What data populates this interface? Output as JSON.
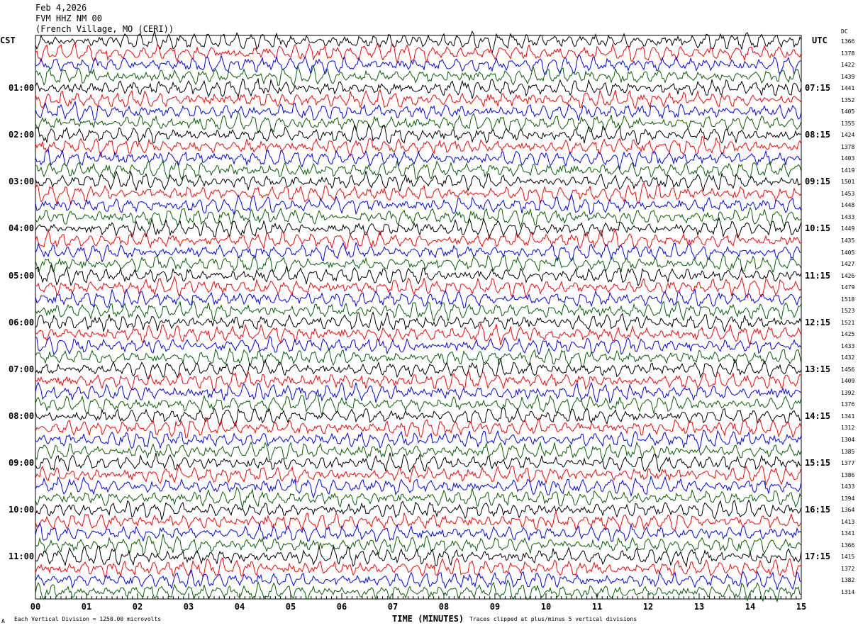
{
  "header": {
    "date": "Feb 4,2026",
    "station": "FVM HHZ NM 00",
    "location": "(French Village, MO (CERI))"
  },
  "left_zone": "CST",
  "right_zone": "UTC",
  "dc_label": "DC",
  "footer": {
    "scale": "Each Vertical Division = 1250.00 microvolts",
    "xlabel": "TIME (MINUTES)",
    "clip_note": "Traces clipped at plus/minus 5 vertical divisions",
    "corner": "A"
  },
  "chart_data": {
    "type": "line",
    "xlabel": "TIME (MINUTES)",
    "xlim": [
      0,
      15
    ],
    "x_ticks": [
      "00",
      "01",
      "02",
      "03",
      "04",
      "05",
      "06",
      "07",
      "08",
      "09",
      "10",
      "11",
      "12",
      "13",
      "14",
      "15"
    ],
    "left_hour_labels": [
      "01:00",
      "02:00",
      "03:00",
      "04:00",
      "05:00",
      "06:00",
      "07:00",
      "08:00",
      "09:00",
      "10:00",
      "11:00"
    ],
    "right_hour_labels": [
      "07:15",
      "08:15",
      "09:15",
      "10:15",
      "11:15",
      "12:15",
      "13:15",
      "14:15",
      "15:15",
      "16:15",
      "17:15"
    ],
    "trace_colors": [
      "#000000",
      "#ff0000",
      "#0000ff",
      "#006400"
    ],
    "dc_offsets": [
      1366,
      1378,
      1422,
      1439,
      1441,
      1352,
      1405,
      1355,
      1424,
      1378,
      1403,
      1419,
      1501,
      1453,
      1448,
      1433,
      1449,
      1435,
      1405,
      1427,
      1426,
      1479,
      1518,
      1523,
      1521,
      1425,
      1433,
      1432,
      1456,
      1409,
      1392,
      1376,
      1341,
      1312,
      1304,
      1385,
      1377,
      1386,
      1433,
      1394,
      1364,
      1413,
      1341,
      1366,
      1415,
      1372,
      1382,
      1314
    ],
    "traces_per_hour": 4,
    "trace_minutes": 15
  }
}
